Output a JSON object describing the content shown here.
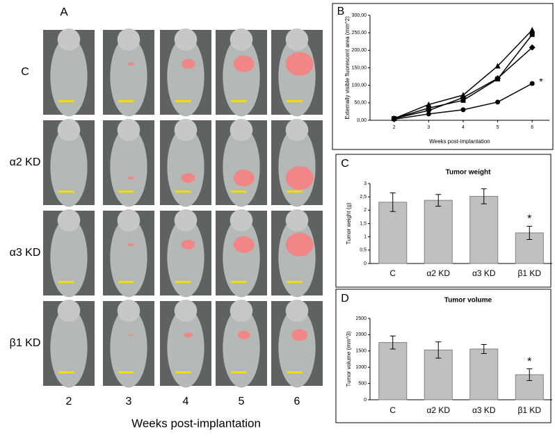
{
  "image_panel": {
    "label": "A",
    "rows": [
      "C",
      "α2 KD",
      "α3 KD",
      "β1 KD"
    ],
    "columns": [
      "2",
      "3",
      "4",
      "5",
      "6"
    ],
    "xlabel": "Weeks post-implantation"
  },
  "chart_data": [
    {
      "type": "line",
      "panel": "B",
      "ylabel": "Externally visible fluorescent area (mm^2)",
      "xlabel": "Weeks post-implantation",
      "x": [
        2,
        3,
        4,
        5,
        6
      ],
      "xlim": [
        1.3,
        6.5
      ],
      "xticks": [
        2,
        3,
        4,
        5,
        6
      ],
      "ylim": [
        0,
        300
      ],
      "yticks": [
        {
          "value": 0,
          "label": "0,00"
        },
        {
          "value": 50,
          "label": "50,00"
        },
        {
          "value": 100,
          "label": "100,00"
        },
        {
          "value": 150,
          "label": "150,00"
        },
        {
          "value": 200,
          "label": "200,00"
        },
        {
          "value": 250,
          "label": "250,00"
        },
        {
          "value": 300,
          "label": "300,00"
        }
      ],
      "series": [
        {
          "marker": "triangle",
          "color": "#000000",
          "values": [
            5,
            45,
            72,
            155,
            258
          ]
        },
        {
          "marker": "square",
          "color": "#000000",
          "values": [
            5,
            35,
            57,
            118,
            245
          ]
        },
        {
          "marker": "diamond",
          "color": "#000000",
          "values": [
            5,
            28,
            65,
            120,
            208
          ]
        },
        {
          "marker": "circle",
          "color": "#000000",
          "values": [
            3,
            18,
            30,
            52,
            105
          ]
        }
      ],
      "annotation": "*"
    },
    {
      "type": "bar",
      "panel": "C",
      "title": "Tumor weight",
      "ylabel": "Tumor weight (g)",
      "categories": [
        "C",
        "α2 KD",
        "α3 KD",
        "β1 KD"
      ],
      "values": [
        2.3,
        2.37,
        2.52,
        1.15
      ],
      "errors": [
        0.35,
        0.22,
        0.28,
        0.25
      ],
      "color": "#c0c0c0",
      "ylim": [
        0,
        3
      ],
      "yticks": [
        0,
        {
          "value": 0.5,
          "label": "0,5"
        },
        1,
        {
          "value": 1.5,
          "label": "1,5"
        },
        2,
        {
          "value": 2.5,
          "label": "2,5"
        },
        3
      ],
      "annotation": "*"
    },
    {
      "type": "bar",
      "panel": "D",
      "title": "Tumor volume",
      "ylabel": "Tumor volume (mm^3)",
      "categories": [
        "C",
        "α2 KD",
        "α3 KD",
        "β1 KD"
      ],
      "values": [
        1760,
        1530,
        1560,
        770
      ],
      "errors": [
        200,
        250,
        140,
        180
      ],
      "color": "#c0c0c0",
      "ylim": [
        0,
        2500
      ],
      "yticks": [
        0,
        500,
        1000,
        1500,
        2000,
        2500
      ],
      "annotation": "*"
    }
  ]
}
